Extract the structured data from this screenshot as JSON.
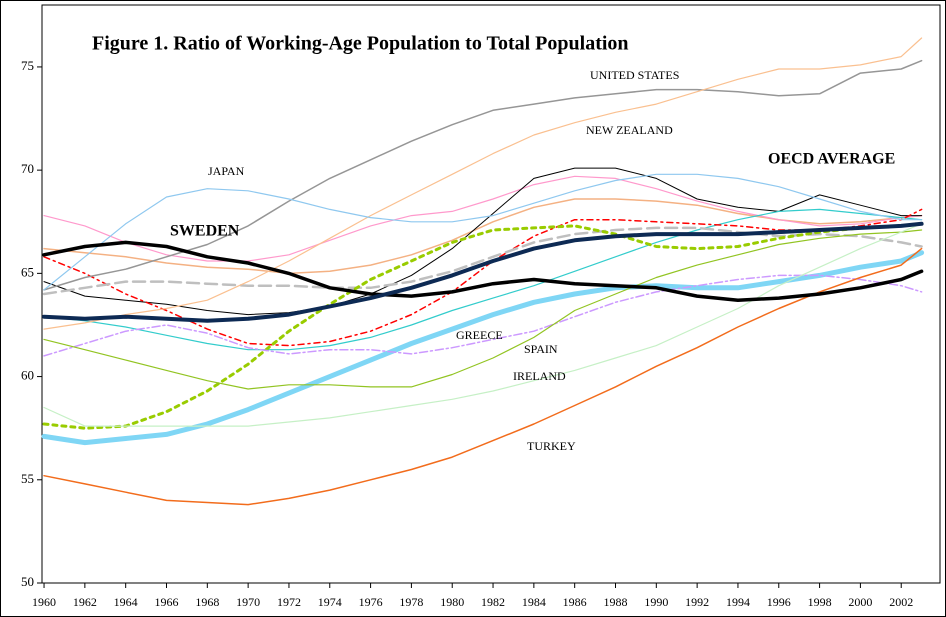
{
  "chart_data": {
    "type": "line",
    "title": "Figure 1. Ratio of Working-Age Population to Total Population",
    "x": [
      1960,
      1962,
      1964,
      1966,
      1968,
      1970,
      1972,
      1974,
      1976,
      1978,
      1980,
      1982,
      1984,
      1986,
      1988,
      1990,
      1992,
      1994,
      1996,
      1998,
      2000,
      2002,
      2003
    ],
    "xlim": [
      1959.9,
      2003.9
    ],
    "xticks": [
      1960,
      1962,
      1964,
      1966,
      1968,
      1970,
      1972,
      1974,
      1976,
      1978,
      1980,
      1982,
      1984,
      1986,
      1988,
      1990,
      1992,
      1994,
      1996,
      1998,
      2000,
      2002
    ],
    "ylim": [
      50,
      78
    ],
    "yticks": [
      50,
      55,
      60,
      65,
      70,
      75
    ],
    "series": [
      {
        "color": "#f4b183",
        "values": [
          66.2,
          66.0,
          65.8,
          65.5,
          65.3,
          65.2,
          65.0,
          65.1,
          65.4,
          65.9,
          66.6,
          67.5,
          68.2,
          68.6,
          68.6,
          68.5,
          68.3,
          67.9,
          67.6,
          67.4,
          67.5,
          67.7,
          67.8
        ]
      },
      {
        "color": "#ff99cc",
        "values": [
          67.8,
          67.3,
          66.5,
          65.9,
          65.6,
          65.6,
          65.9,
          66.6,
          67.3,
          67.8,
          68.0,
          68.6,
          69.3,
          69.7,
          69.6,
          69.1,
          68.5,
          68.0,
          67.6,
          67.3,
          67.4,
          67.7,
          67.8
        ]
      },
      {
        "color": "#000000",
        "values": [
          64.6,
          63.9,
          63.7,
          63.5,
          63.2,
          63.0,
          63.1,
          63.4,
          64.0,
          64.9,
          66.2,
          67.9,
          69.6,
          70.1,
          70.1,
          69.6,
          68.6,
          68.2,
          68.0,
          68.8,
          68.3,
          67.8,
          67.8
        ]
      },
      {
        "color": "#33cccc",
        "values": [
          62.9,
          62.7,
          62.4,
          62.0,
          61.6,
          61.3,
          61.3,
          61.5,
          61.9,
          62.5,
          63.2,
          63.8,
          64.4,
          65.1,
          65.8,
          66.5,
          67.1,
          67.6,
          68.0,
          68.1,
          67.9,
          67.7,
          67.6
        ]
      },
      {
        "color": "#ff0000",
        "values": [
          65.8,
          65.0,
          64.0,
          63.2,
          62.3,
          61.6,
          61.5,
          61.7,
          62.2,
          63.0,
          64.1,
          65.6,
          66.8,
          67.6,
          67.6,
          67.5,
          67.4,
          67.3,
          67.1,
          67.1,
          67.3,
          67.6,
          68.1
        ]
      },
      {
        "color": "#bfbfbf",
        "values": [
          64.0,
          64.3,
          64.6,
          64.6,
          64.5,
          64.4,
          64.4,
          64.3,
          64.3,
          64.6,
          65.1,
          65.8,
          66.5,
          66.9,
          67.1,
          67.2,
          67.2,
          67.0,
          66.8,
          66.9,
          66.8,
          66.5,
          66.3
        ]
      },
      {
        "color": "#99cc00",
        "values": [
          57.7,
          57.5,
          57.6,
          58.3,
          59.3,
          60.6,
          62.2,
          63.5,
          64.7,
          65.6,
          66.5,
          67.1,
          67.2,
          67.3,
          66.9,
          66.3,
          66.2,
          66.3,
          66.7,
          67.0,
          67.2,
          67.3,
          67.4
        ]
      },
      {
        "color": "#7fd6f5",
        "values": [
          57.1,
          56.8,
          57.0,
          57.2,
          57.7,
          58.4,
          59.2,
          60.0,
          60.8,
          61.6,
          62.3,
          63.0,
          63.6,
          64.0,
          64.3,
          64.4,
          64.3,
          64.3,
          64.6,
          64.9,
          65.3,
          65.6,
          66.0
        ]
      },
      {
        "name": "UNITED STATES",
        "color": "#969696",
        "values": [
          64.2,
          64.8,
          65.2,
          65.8,
          66.4,
          67.3,
          68.5,
          69.6,
          70.5,
          71.4,
          72.2,
          72.9,
          73.2,
          73.5,
          73.7,
          73.9,
          73.9,
          73.8,
          73.6,
          73.7,
          74.7,
          74.9,
          75.3
        ]
      },
      {
        "name": "NEW ZEALAND",
        "color": "#fac090",
        "values": [
          62.3,
          62.6,
          63.0,
          63.3,
          63.7,
          64.6,
          65.6,
          66.7,
          67.8,
          68.8,
          69.8,
          70.8,
          71.7,
          72.3,
          72.8,
          73.2,
          73.8,
          74.4,
          74.9,
          74.9,
          75.1,
          75.5,
          76.4
        ]
      },
      {
        "name": "JAPAN",
        "color": "#8fc8ef",
        "values": [
          64.2,
          65.8,
          67.4,
          68.7,
          69.1,
          69.0,
          68.6,
          68.1,
          67.7,
          67.5,
          67.5,
          67.8,
          68.4,
          69.0,
          69.5,
          69.8,
          69.8,
          69.6,
          69.2,
          68.6,
          68.0,
          67.6,
          67.6
        ]
      },
      {
        "name": "GREECE",
        "color": "#cc99ff",
        "values": [
          61.0,
          61.6,
          62.2,
          62.5,
          62.1,
          61.4,
          61.1,
          61.3,
          61.3,
          61.1,
          61.4,
          61.8,
          62.2,
          62.9,
          63.6,
          64.1,
          64.4,
          64.7,
          64.9,
          64.9,
          64.7,
          64.4,
          64.1
        ]
      },
      {
        "name": "SPAIN",
        "color": "#92c422",
        "values": [
          61.8,
          61.3,
          60.8,
          60.3,
          59.8,
          59.4,
          59.6,
          59.6,
          59.5,
          59.5,
          60.1,
          60.9,
          61.9,
          63.2,
          64.0,
          64.8,
          65.4,
          65.9,
          66.4,
          66.7,
          66.9,
          67.0,
          67.1
        ]
      },
      {
        "name": "IRELAND",
        "color": "#c6f0c6",
        "values": [
          58.5,
          57.6,
          57.6,
          57.6,
          57.6,
          57.6,
          57.8,
          58.0,
          58.3,
          58.6,
          58.9,
          59.3,
          59.8,
          60.3,
          60.9,
          61.5,
          62.4,
          63.3,
          64.4,
          65.3,
          66.2,
          67.0,
          67.4
        ]
      },
      {
        "name": "TURKEY",
        "color": "#f26c1c",
        "values": [
          55.2,
          54.8,
          54.4,
          54.0,
          53.9,
          53.8,
          54.1,
          54.5,
          55.0,
          55.5,
          56.1,
          56.9,
          57.7,
          58.6,
          59.5,
          60.5,
          61.4,
          62.4,
          63.3,
          64.1,
          64.8,
          65.4,
          66.2
        ]
      },
      {
        "name": "SWEDEN",
        "color": "#000000",
        "values": [
          65.9,
          66.3,
          66.5,
          66.3,
          65.8,
          65.5,
          65.0,
          64.3,
          64.0,
          63.9,
          64.1,
          64.5,
          64.7,
          64.5,
          64.4,
          64.3,
          63.9,
          63.7,
          63.8,
          64.0,
          64.3,
          64.7,
          65.1
        ]
      },
      {
        "name": "OECD AVERAGE",
        "color": "#0d2a54",
        "values": [
          62.9,
          62.8,
          62.9,
          62.8,
          62.7,
          62.8,
          63.0,
          63.4,
          63.8,
          64.3,
          64.9,
          65.6,
          66.2,
          66.6,
          66.8,
          66.9,
          66.9,
          66.9,
          67.0,
          67.1,
          67.2,
          67.3,
          67.4
        ]
      }
    ]
  }
}
